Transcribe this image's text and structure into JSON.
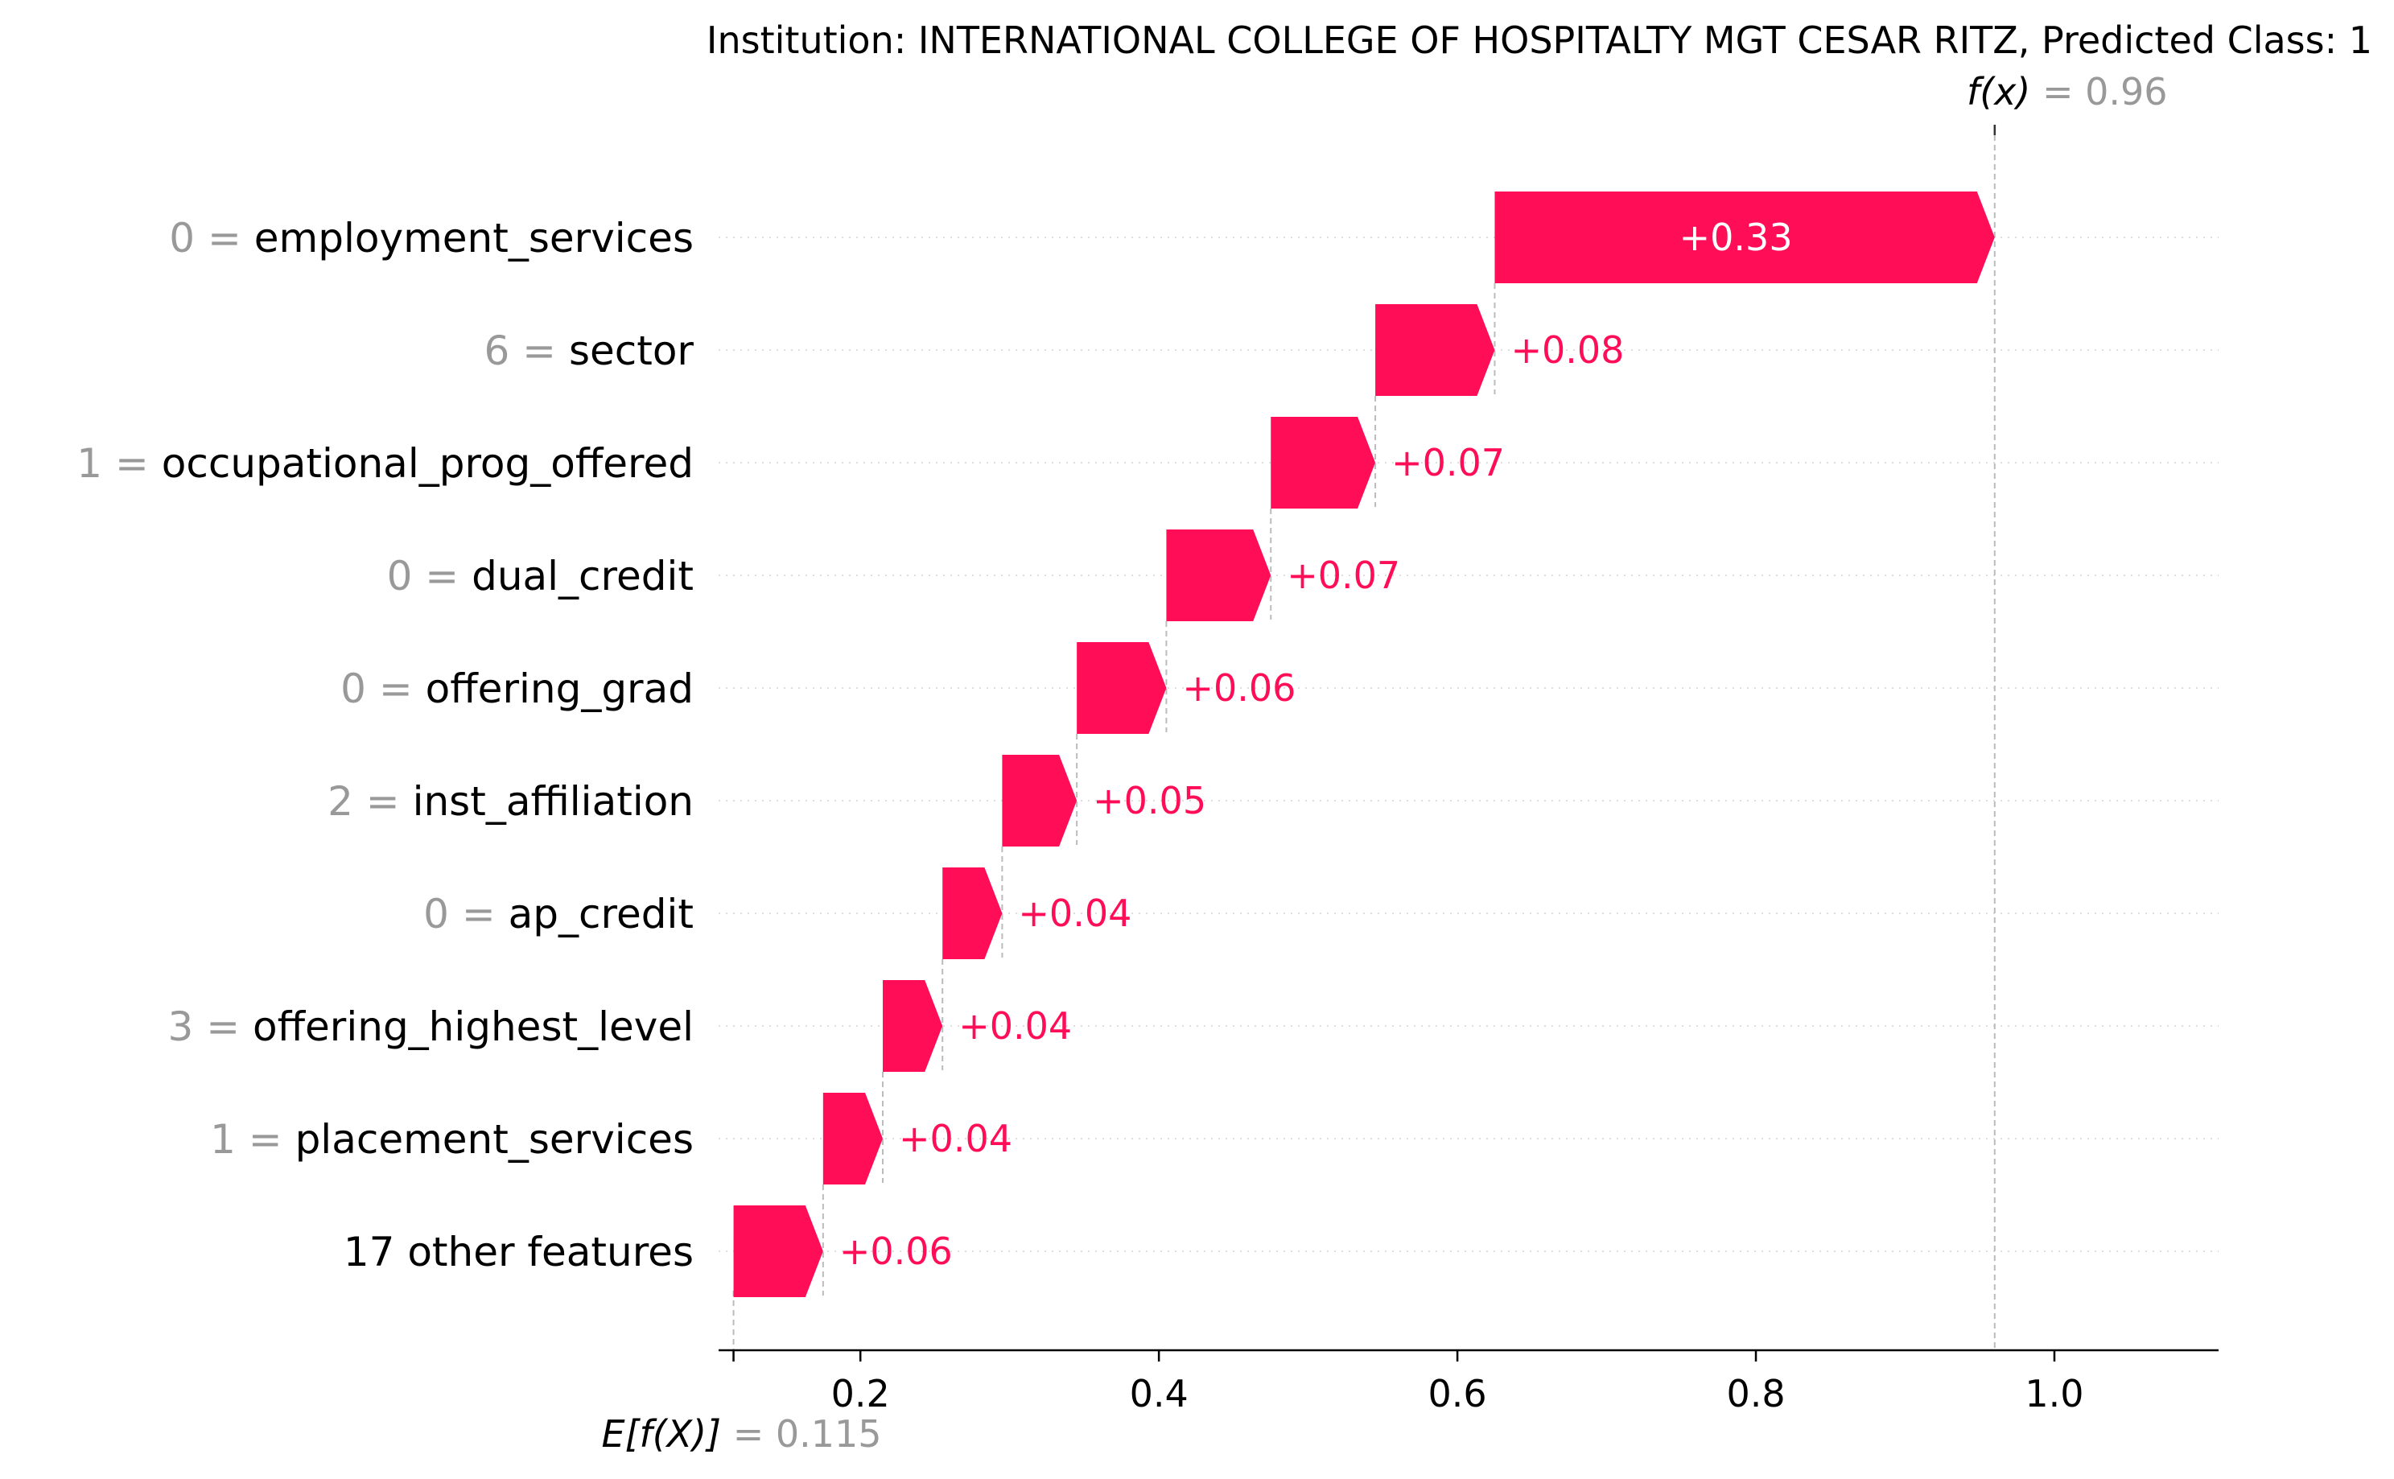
{
  "chart_data": {
    "type": "waterfall",
    "title": "Institution: INTERNATIONAL COLLEGE OF HOSPITALTY MGT CESAR RITZ, Predicted Class: 1",
    "base_value": 0.115,
    "base_label": "E[f(X)]",
    "base_value_text": "= 0.115",
    "output_value": 0.96,
    "output_label": "f(x)",
    "output_value_text": "= 0.96",
    "xlim": [
      0.105,
      1.11
    ],
    "xticks": [
      0.2,
      0.4,
      0.6,
      0.8,
      1.0
    ],
    "xtick_labels": [
      "0.2",
      "0.4",
      "0.6",
      "0.8",
      "1.0"
    ],
    "positive_color": "#ff0d57",
    "features": [
      {
        "value": "0",
        "name": "employment_services",
        "contribution": 0.33,
        "label": "+0.33"
      },
      {
        "value": "6",
        "name": "sector",
        "contribution": 0.08,
        "label": "+0.08"
      },
      {
        "value": "1",
        "name": "occupational_prog_offered",
        "contribution": 0.07,
        "label": "+0.07"
      },
      {
        "value": "0",
        "name": "dual_credit",
        "contribution": 0.07,
        "label": "+0.07"
      },
      {
        "value": "0",
        "name": "offering_grad",
        "contribution": 0.06,
        "label": "+0.06"
      },
      {
        "value": "2",
        "name": "inst_affiliation",
        "contribution": 0.05,
        "label": "+0.05"
      },
      {
        "value": "0",
        "name": "ap_credit",
        "contribution": 0.04,
        "label": "+0.04"
      },
      {
        "value": "3",
        "name": "offering_highest_level",
        "contribution": 0.04,
        "label": "+0.04"
      },
      {
        "value": "1",
        "name": "placement_services",
        "contribution": 0.04,
        "label": "+0.04"
      },
      {
        "value": "",
        "name": "17 other features",
        "contribution": 0.06,
        "label": "+0.06"
      }
    ]
  }
}
